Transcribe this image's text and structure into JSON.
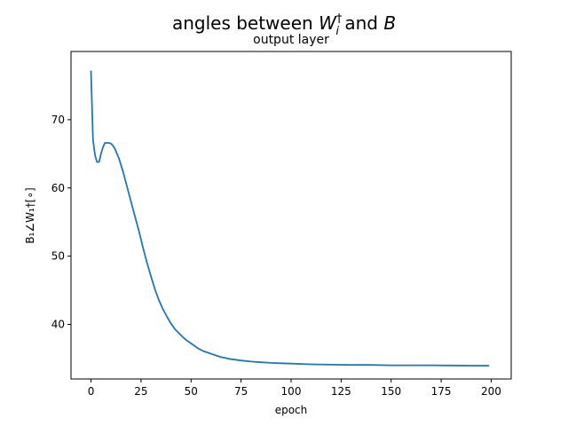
{
  "chart_data": {
    "type": "line",
    "title_text": "angles between ",
    "title_math_w": "W",
    "title_math_w_sup": "†",
    "title_math_w_sub": "i",
    "title_mid": " and ",
    "title_math_b": "B",
    "subtitle": "output layer",
    "xlabel": "epoch",
    "ylabel": "B₁∠W₁†[∘]",
    "xlim": [
      -10,
      210
    ],
    "ylim": [
      32,
      80
    ],
    "xticks": [
      0,
      25,
      50,
      75,
      100,
      125,
      150,
      175,
      200
    ],
    "yticks": [
      40,
      50,
      60,
      70
    ],
    "grid": false,
    "series": [
      {
        "color": "#1f77b4",
        "x": [
          0,
          1,
          2,
          3,
          4,
          5,
          6,
          7,
          8,
          9,
          10,
          11,
          12,
          14,
          16,
          18,
          20,
          22,
          24,
          26,
          28,
          30,
          32,
          34,
          36,
          38,
          40,
          42,
          44,
          46,
          48,
          50,
          52,
          54,
          56,
          58,
          60,
          62,
          65,
          70,
          75,
          80,
          85,
          90,
          95,
          100,
          110,
          120,
          130,
          140,
          150,
          160,
          170,
          180,
          190,
          199
        ],
        "y": [
          77.2,
          67.0,
          64.8,
          63.8,
          63.8,
          65.0,
          66.0,
          66.6,
          66.6,
          66.6,
          66.5,
          66.2,
          65.7,
          64.3,
          62.4,
          60.2,
          58.0,
          55.8,
          53.6,
          51.2,
          49.0,
          47.0,
          45.1,
          43.5,
          42.2,
          41.1,
          40.1,
          39.3,
          38.7,
          38.1,
          37.6,
          37.2,
          36.8,
          36.4,
          36.1,
          35.9,
          35.7,
          35.5,
          35.2,
          34.9,
          34.7,
          34.55,
          34.45,
          34.35,
          34.3,
          34.25,
          34.15,
          34.1,
          34.05,
          34.05,
          34.0,
          34.0,
          34.0,
          33.98,
          33.95,
          33.95
        ]
      }
    ]
  },
  "colors": {
    "line": "#1f77b4",
    "axes": "#000000",
    "background": "#ffffff"
  }
}
